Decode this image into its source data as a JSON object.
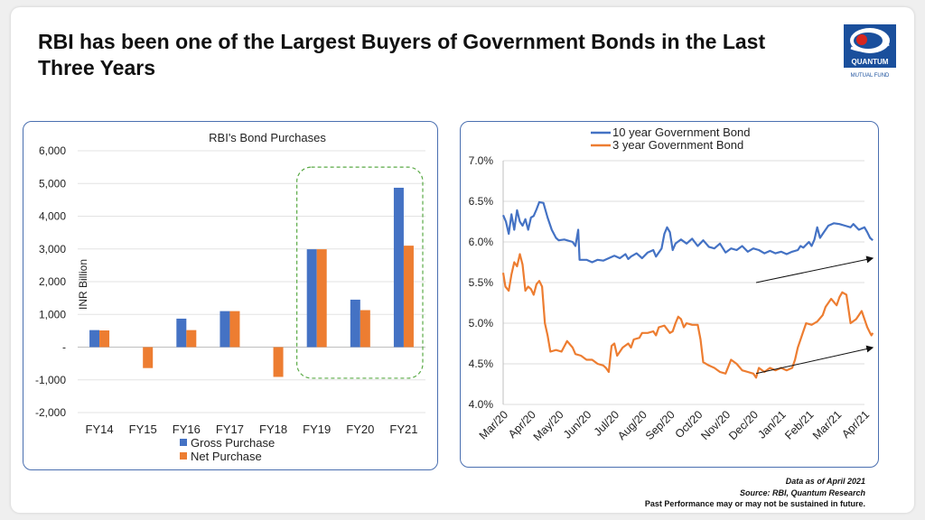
{
  "header": {
    "title": "RBI has been one of the Largest Buyers of Government Bonds in the Last Three Years"
  },
  "logo": {
    "brand_text": "QUANTUM",
    "sub_text": "MUTUAL FUND",
    "colors": {
      "blue": "#1a4f9c",
      "red": "#d7261e"
    }
  },
  "footer": {
    "line1": "Data as of April 2021",
    "line2": "Source: RBI, Quantum Research",
    "line3": "Past Performance may or may not be sustained in future."
  },
  "chart_data": [
    {
      "type": "bar",
      "title": "RBI's Bond Purchases",
      "ylabel": "INR Billion",
      "ylim": [
        -2000,
        6000
      ],
      "yticks": [
        -2000,
        -1000,
        0,
        1000,
        2000,
        3000,
        4000,
        5000,
        6000
      ],
      "ytick_labels": [
        "-2,000",
        "-1,000",
        "-",
        "1,000",
        "2,000",
        "3,000",
        "4,000",
        "5,000",
        "6,000"
      ],
      "categories": [
        "FY14",
        "FY15",
        "FY16",
        "FY17",
        "FY18",
        "FY19",
        "FY20",
        "FY21"
      ],
      "series": [
        {
          "name": "Gross Purchase",
          "color": "#4472c4",
          "values": [
            520,
            0,
            870,
            1100,
            0,
            2990,
            1450,
            4870
          ]
        },
        {
          "name": "Net Purchase",
          "color": "#ed7d31",
          "values": [
            510,
            -640,
            520,
            1100,
            -910,
            2990,
            1130,
            3100
          ]
        }
      ],
      "legend": "bottom",
      "highlight": {
        "categories": [
          "FY19",
          "FY20",
          "FY21"
        ],
        "style": "dashed",
        "color": "#5aaa46"
      },
      "grid": true
    },
    {
      "type": "line",
      "ylim": [
        4.0,
        7.0
      ],
      "yticks": [
        4.0,
        4.5,
        5.0,
        5.5,
        6.0,
        6.5,
        7.0
      ],
      "ytick_labels": [
        "4.0%",
        "4.5%",
        "5.0%",
        "5.5%",
        "6.0%",
        "6.5%",
        "7.0%"
      ],
      "x": [
        "Mar/20",
        "Apr/20",
        "May/20",
        "Jun/20",
        "Jul/20",
        "Aug/20",
        "Sep/20",
        "Oct/20",
        "Nov/20",
        "Dec/20",
        "Jan/21",
        "Feb/21",
        "Mar/21",
        "Apr/21"
      ],
      "legend": "top",
      "grid": true,
      "series": [
        {
          "name": "10 year Government Bond",
          "color": "#4472c4",
          "points": [
            [
              0,
              6.33
            ],
            [
              0.1,
              6.25
            ],
            [
              0.2,
              6.1
            ],
            [
              0.3,
              6.34
            ],
            [
              0.4,
              6.15
            ],
            [
              0.5,
              6.39
            ],
            [
              0.6,
              6.25
            ],
            [
              0.7,
              6.2
            ],
            [
              0.8,
              6.28
            ],
            [
              0.9,
              6.15
            ],
            [
              1.0,
              6.3
            ],
            [
              1.1,
              6.32
            ],
            [
              1.2,
              6.4
            ],
            [
              1.3,
              6.49
            ],
            [
              1.45,
              6.48
            ],
            [
              1.6,
              6.3
            ],
            [
              1.75,
              6.15
            ],
            [
              1.9,
              6.05
            ],
            [
              2.0,
              6.02
            ],
            [
              2.2,
              6.03
            ],
            [
              2.5,
              6.0
            ],
            [
              2.6,
              5.95
            ],
            [
              2.7,
              6.15
            ],
            [
              2.75,
              5.78
            ],
            [
              3.0,
              5.78
            ],
            [
              3.2,
              5.75
            ],
            [
              3.4,
              5.78
            ],
            [
              3.6,
              5.77
            ],
            [
              3.8,
              5.8
            ],
            [
              4.0,
              5.83
            ],
            [
              4.2,
              5.8
            ],
            [
              4.4,
              5.85
            ],
            [
              4.5,
              5.79
            ],
            [
              4.6,
              5.82
            ],
            [
              4.8,
              5.86
            ],
            [
              5.0,
              5.8
            ],
            [
              5.2,
              5.87
            ],
            [
              5.4,
              5.9
            ],
            [
              5.5,
              5.82
            ],
            [
              5.7,
              5.92
            ],
            [
              5.8,
              6.1
            ],
            [
              5.9,
              6.18
            ],
            [
              6.0,
              6.12
            ],
            [
              6.1,
              5.9
            ],
            [
              6.2,
              5.98
            ],
            [
              6.4,
              6.03
            ],
            [
              6.6,
              5.98
            ],
            [
              6.8,
              6.04
            ],
            [
              7.0,
              5.95
            ],
            [
              7.2,
              6.02
            ],
            [
              7.4,
              5.94
            ],
            [
              7.6,
              5.92
            ],
            [
              7.8,
              5.98
            ],
            [
              8.0,
              5.87
            ],
            [
              8.2,
              5.92
            ],
            [
              8.4,
              5.9
            ],
            [
              8.6,
              5.95
            ],
            [
              8.8,
              5.88
            ],
            [
              9.0,
              5.92
            ],
            [
              9.2,
              5.9
            ],
            [
              9.4,
              5.86
            ],
            [
              9.6,
              5.89
            ],
            [
              9.8,
              5.86
            ],
            [
              10.0,
              5.88
            ],
            [
              10.2,
              5.85
            ],
            [
              10.4,
              5.88
            ],
            [
              10.6,
              5.9
            ],
            [
              10.7,
              5.95
            ],
            [
              10.8,
              5.93
            ],
            [
              11.0,
              6.0
            ],
            [
              11.1,
              5.95
            ],
            [
              11.2,
              6.03
            ],
            [
              11.3,
              6.18
            ],
            [
              11.4,
              6.05
            ],
            [
              11.5,
              6.1
            ],
            [
              11.7,
              6.2
            ],
            [
              11.9,
              6.23
            ],
            [
              12.1,
              6.22
            ],
            [
              12.3,
              6.2
            ],
            [
              12.5,
              6.18
            ],
            [
              12.6,
              6.22
            ],
            [
              12.8,
              6.15
            ],
            [
              13.0,
              6.18
            ],
            [
              13.1,
              6.12
            ],
            [
              13.2,
              6.05
            ],
            [
              13.3,
              6.02
            ]
          ]
        },
        {
          "name": "3 year Government Bond",
          "color": "#ed7d31",
          "points": [
            [
              0,
              5.62
            ],
            [
              0.08,
              5.45
            ],
            [
              0.2,
              5.4
            ],
            [
              0.3,
              5.6
            ],
            [
              0.4,
              5.75
            ],
            [
              0.5,
              5.7
            ],
            [
              0.6,
              5.85
            ],
            [
              0.7,
              5.72
            ],
            [
              0.8,
              5.4
            ],
            [
              0.9,
              5.45
            ],
            [
              1.0,
              5.42
            ],
            [
              1.1,
              5.35
            ],
            [
              1.2,
              5.48
            ],
            [
              1.3,
              5.52
            ],
            [
              1.4,
              5.45
            ],
            [
              1.5,
              5.0
            ],
            [
              1.6,
              4.85
            ],
            [
              1.7,
              4.65
            ],
            [
              1.9,
              4.67
            ],
            [
              2.1,
              4.65
            ],
            [
              2.3,
              4.78
            ],
            [
              2.5,
              4.7
            ],
            [
              2.6,
              4.62
            ],
            [
              2.8,
              4.6
            ],
            [
              3.0,
              4.55
            ],
            [
              3.2,
              4.55
            ],
            [
              3.4,
              4.5
            ],
            [
              3.6,
              4.48
            ],
            [
              3.7,
              4.45
            ],
            [
              3.8,
              4.4
            ],
            [
              3.9,
              4.72
            ],
            [
              4.0,
              4.75
            ],
            [
              4.1,
              4.6
            ],
            [
              4.3,
              4.7
            ],
            [
              4.5,
              4.75
            ],
            [
              4.6,
              4.7
            ],
            [
              4.7,
              4.8
            ],
            [
              4.9,
              4.82
            ],
            [
              5.0,
              4.88
            ],
            [
              5.2,
              4.88
            ],
            [
              5.4,
              4.9
            ],
            [
              5.5,
              4.85
            ],
            [
              5.6,
              4.95
            ],
            [
              5.8,
              4.97
            ],
            [
              6.0,
              4.88
            ],
            [
              6.1,
              4.9
            ],
            [
              6.2,
              5.0
            ],
            [
              6.3,
              5.08
            ],
            [
              6.4,
              5.05
            ],
            [
              6.5,
              4.95
            ],
            [
              6.6,
              5.0
            ],
            [
              6.8,
              4.98
            ],
            [
              7.0,
              4.98
            ],
            [
              7.1,
              4.8
            ],
            [
              7.2,
              4.52
            ],
            [
              7.4,
              4.48
            ],
            [
              7.6,
              4.45
            ],
            [
              7.8,
              4.4
            ],
            [
              8.0,
              4.38
            ],
            [
              8.2,
              4.55
            ],
            [
              8.4,
              4.5
            ],
            [
              8.6,
              4.42
            ],
            [
              8.8,
              4.4
            ],
            [
              9.0,
              4.38
            ],
            [
              9.1,
              4.33
            ],
            [
              9.2,
              4.45
            ],
            [
              9.4,
              4.4
            ],
            [
              9.6,
              4.45
            ],
            [
              9.8,
              4.42
            ],
            [
              10.0,
              4.45
            ],
            [
              10.2,
              4.42
            ],
            [
              10.4,
              4.45
            ],
            [
              10.5,
              4.55
            ],
            [
              10.6,
              4.7
            ],
            [
              10.8,
              4.9
            ],
            [
              10.9,
              5.0
            ],
            [
              11.1,
              4.98
            ],
            [
              11.3,
              5.02
            ],
            [
              11.5,
              5.1
            ],
            [
              11.6,
              5.2
            ],
            [
              11.8,
              5.3
            ],
            [
              12.0,
              5.22
            ],
            [
              12.1,
              5.32
            ],
            [
              12.2,
              5.38
            ],
            [
              12.35,
              5.35
            ],
            [
              12.5,
              5.0
            ],
            [
              12.7,
              5.05
            ],
            [
              12.9,
              5.15
            ],
            [
              13.0,
              5.05
            ],
            [
              13.1,
              4.95
            ],
            [
              13.2,
              4.88
            ],
            [
              13.25,
              4.85
            ],
            [
              13.3,
              4.88
            ]
          ]
        }
      ],
      "annotations": [
        {
          "type": "arrow",
          "from": [
            9.1,
            5.5
          ],
          "to": [
            13.3,
            5.8
          ]
        },
        {
          "type": "arrow",
          "from": [
            9.1,
            4.38
          ],
          "to": [
            13.3,
            4.7
          ]
        }
      ]
    }
  ]
}
